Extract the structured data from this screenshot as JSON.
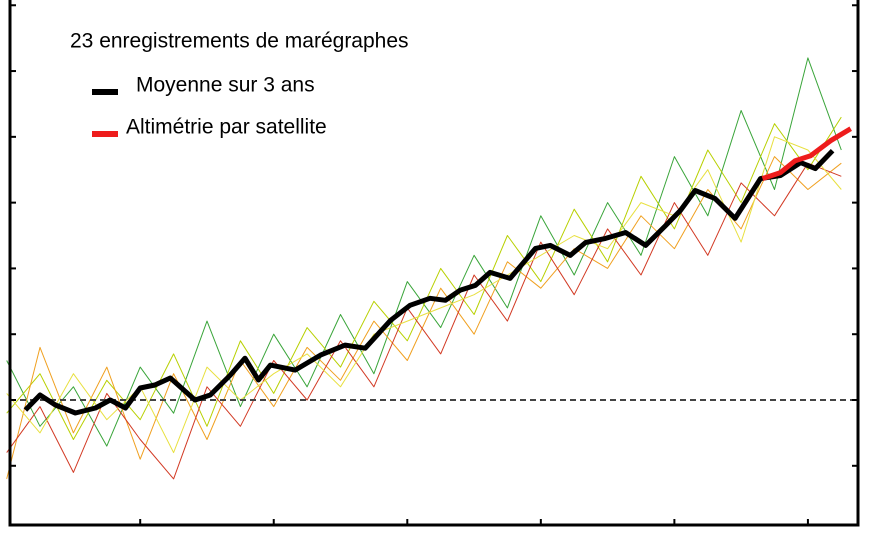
{
  "chart_data": {
    "type": "line",
    "title": "23 enregistrements de marégraphes",
    "xlim": [
      1880.5,
      2007.5
    ],
    "ylim": [
      -95,
      304
    ],
    "xticks": [
      1900,
      1920,
      1940,
      1960,
      1980,
      2000
    ],
    "yticks": [
      -50,
      0,
      50,
      100,
      150,
      200,
      250,
      300
    ],
    "reference_line": 0,
    "gauges": {
      "x": [
        1880,
        1885,
        1890,
        1895,
        1900,
        1905,
        1910,
        1915,
        1920,
        1925,
        1930,
        1935,
        1940,
        1945,
        1950,
        1955,
        1960,
        1965,
        1970,
        1975,
        1980,
        1985,
        1990,
        1995,
        2000,
        2005
      ],
      "series": [
        {
          "color": "#3aa53a",
          "values": [
            30,
            -20,
            10,
            -35,
            25,
            -10,
            60,
            -5,
            50,
            10,
            65,
            20,
            90,
            55,
            110,
            70,
            140,
            95,
            150,
            110,
            185,
            140,
            220,
            160,
            260,
            190
          ]
        },
        {
          "color": "#b8d000",
          "values": [
            -10,
            20,
            -30,
            15,
            -15,
            35,
            -20,
            45,
            5,
            55,
            25,
            75,
            45,
            100,
            65,
            125,
            90,
            145,
            105,
            170,
            130,
            190,
            150,
            210,
            175,
            215
          ]
        },
        {
          "color": "#f0a020",
          "values": [
            -60,
            40,
            -25,
            25,
            -45,
            20,
            -30,
            30,
            -5,
            40,
            15,
            60,
            30,
            85,
            50,
            105,
            85,
            115,
            100,
            140,
            115,
            160,
            130,
            185,
            160,
            180
          ]
        },
        {
          "color": "#d23a24",
          "values": [
            -40,
            -5,
            -55,
            5,
            -30,
            -60,
            10,
            -20,
            30,
            0,
            45,
            10,
            70,
            35,
            95,
            60,
            120,
            80,
            130,
            95,
            150,
            110,
            165,
            140,
            180,
            170
          ]
        },
        {
          "color": "#e8e040",
          "values": [
            5,
            -25,
            20,
            -15,
            10,
            -40,
            25,
            0,
            20,
            35,
            10,
            50,
            60,
            70,
            80,
            95,
            110,
            125,
            115,
            150,
            140,
            175,
            120,
            200,
            190,
            160
          ]
        }
      ]
    },
    "series": [
      {
        "name": "Moyenne sur 3 ans",
        "color": "#000000",
        "x": [
          1882.8,
          1885.0,
          1887.3,
          1890.3,
          1893.3,
          1895.5,
          1897.8,
          1900.0,
          1902.2,
          1904.5,
          1908.2,
          1910.5,
          1913.5,
          1915.7,
          1917.7,
          1919.5,
          1923.2,
          1927.0,
          1930.7,
          1933.7,
          1937.5,
          1940.4,
          1943.4,
          1945.7,
          1947.9,
          1950.2,
          1952.4,
          1955.4,
          1959.2,
          1961.4,
          1964.4,
          1966.7,
          1969.7,
          1972.7,
          1975.7,
          1978.7,
          1980.9,
          1983.1,
          1986.1,
          1989.1,
          1992.9,
          1995.9,
          1998.9,
          2001.1,
          2003.7
        ],
        "values": [
          -7.6,
          3.8,
          -3.8,
          -9.9,
          -6.1,
          0,
          -6.1,
          9.1,
          11.4,
          16.7,
          0,
          3.8,
          18.9,
          31.8,
          15.2,
          26.5,
          22.7,
          34.1,
          41.7,
          39.4,
          60.6,
          72.0,
          77.3,
          75.8,
          83.4,
          87.1,
          97.0,
          92.4,
          115.2,
          117.5,
          109.9,
          119.7,
          122.8,
          127.3,
          117.5,
          132.6,
          144.0,
          159.2,
          153.1,
          138.0,
          168.3,
          170.6,
          180.4,
          175.9,
          189.5
        ]
      },
      {
        "name": "Altimétrie par satellite",
        "color": "#ee1c1c",
        "x": [
          1993.2,
          1995.9,
          1998.1,
          2000.4,
          2003.4,
          2006.4
        ],
        "values": [
          168.3,
          172.8,
          181.9,
          185.7,
          197.1,
          206.2
        ]
      }
    ]
  }
}
